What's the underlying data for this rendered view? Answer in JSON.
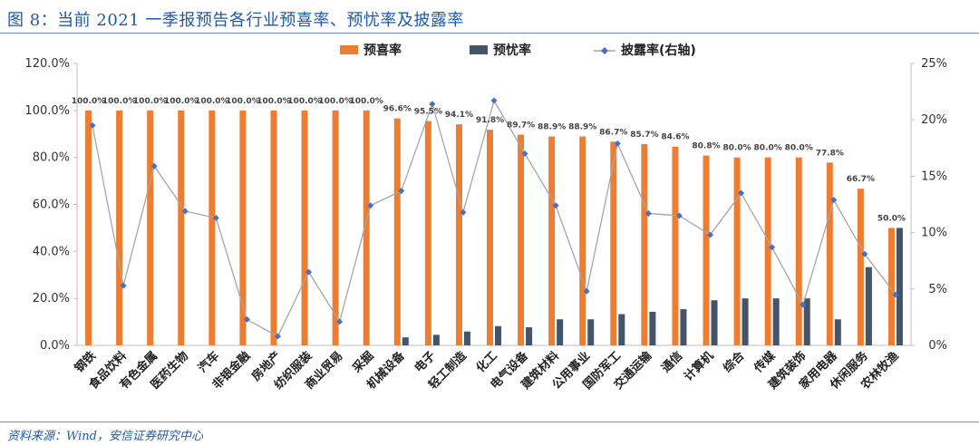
{
  "header": {
    "title": "图 8：当前 2021 一季报预告各行业预喜率、预忧率及披露率"
  },
  "footer": {
    "source": "资料来源：Wind，安信证券研究中心"
  },
  "colors": {
    "bar_good": "#ed7d31",
    "bar_bad": "#44546a",
    "line": "#a6a6a6",
    "marker": "#4472c4",
    "title": "#1f5aa6"
  },
  "chart_data": {
    "type": "bar",
    "categories": [
      "钢铁",
      "食品饮料",
      "有色金属",
      "医药生物",
      "汽车",
      "非银金融",
      "房地产",
      "纺织服装",
      "商业贸易",
      "采掘",
      "机械设备",
      "电子",
      "轻工制造",
      "化工",
      "电气设备",
      "建筑材料",
      "公用事业",
      "国防军工",
      "交通运输",
      "通信",
      "计算机",
      "综合",
      "传媒",
      "建筑装饰",
      "家用电器",
      "休闲服务",
      "农林牧渔"
    ],
    "series": [
      {
        "name": "预喜率",
        "type": "bar",
        "axis": "left",
        "color": "#ed7d31",
        "values": [
          100.0,
          100.0,
          100.0,
          100.0,
          100.0,
          100.0,
          100.0,
          100.0,
          100.0,
          100.0,
          96.6,
          95.5,
          94.1,
          91.8,
          89.7,
          88.9,
          88.9,
          86.7,
          85.7,
          84.6,
          80.8,
          80.0,
          80.0,
          80.0,
          77.8,
          66.7,
          50.0
        ],
        "labels": [
          "100.0%",
          "100.0%",
          "100.0%",
          "100.0%",
          "100.0%",
          "100.0%",
          "100.0%",
          "100.0%",
          "100.0%",
          "100.0%",
          "96.6%",
          "95.5%",
          "94.1%",
          "91.8%",
          "89.7%",
          "88.9%",
          "88.9%",
          "86.7%",
          "85.7%",
          "84.6%",
          "80.8%",
          "80.0%",
          "80.0%",
          "80.0%",
          "77.8%",
          "66.7%",
          "50.0%"
        ]
      },
      {
        "name": "预忧率",
        "type": "bar",
        "axis": "left",
        "color": "#44546a",
        "values": [
          0,
          0,
          0,
          0,
          0,
          0,
          0,
          0,
          0,
          0,
          3.4,
          4.5,
          5.9,
          8.2,
          7.7,
          11.1,
          11.1,
          13.3,
          14.3,
          15.4,
          19.2,
          20.0,
          20.0,
          20.0,
          11.1,
          33.3,
          50.0
        ]
      },
      {
        "name": "披露率(右轴)",
        "type": "line",
        "axis": "right",
        "color": "#a6a6a6",
        "marker_color": "#4472c4",
        "values": [
          19.5,
          5.3,
          15.9,
          11.9,
          11.3,
          2.3,
          0.8,
          6.5,
          2.1,
          12.4,
          13.7,
          21.4,
          11.8,
          21.7,
          17.0,
          12.4,
          4.8,
          17.9,
          11.7,
          11.5,
          9.8,
          13.5,
          8.7,
          3.6,
          12.9,
          8.1,
          4.5
        ]
      }
    ],
    "y_left": {
      "min": 0,
      "max": 120,
      "ticks": [
        "0.0%",
        "20.0%",
        "40.0%",
        "60.0%",
        "80.0%",
        "100.0%",
        "120.0%"
      ]
    },
    "y_right": {
      "min": 0,
      "max": 25,
      "ticks": [
        "0%",
        "5%",
        "10%",
        "15%",
        "20%",
        "25%"
      ]
    },
    "grid": false,
    "legend": {
      "position": "top-center",
      "items": [
        "预喜率",
        "预忧率",
        "披露率(右轴)"
      ]
    }
  }
}
